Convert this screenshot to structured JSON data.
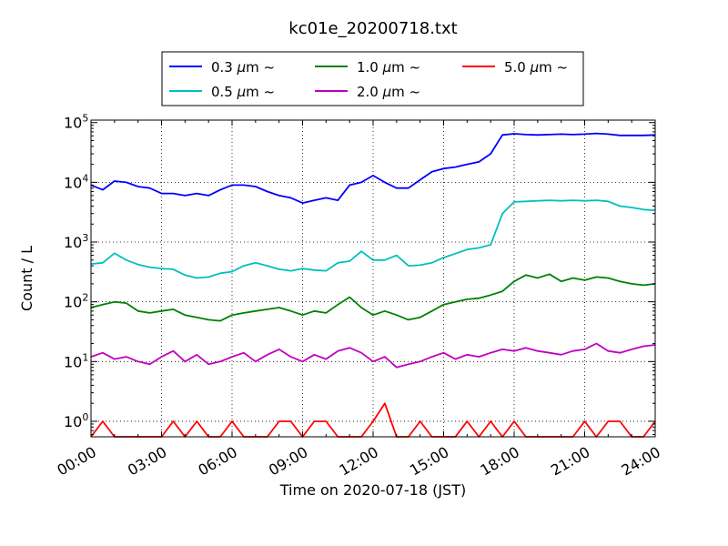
{
  "chart_data": {
    "type": "line",
    "title": "kc01e_20200718.txt",
    "xlabel": "Time on 2020-07-18 (JST)",
    "ylabel": "Count / L",
    "yscale": "log",
    "ylim": [
      0.55,
      110000
    ],
    "xlim": [
      "00:00",
      "24:00"
    ],
    "x_tick_labels": [
      "00:00",
      "03:00",
      "06:00",
      "09:00",
      "12:00",
      "15:00",
      "18:00",
      "21:00",
      "24:00"
    ],
    "y_tick_labels": [
      {
        "base": "10",
        "exp": "0"
      },
      {
        "base": "10",
        "exp": "1"
      },
      {
        "base": "10",
        "exp": "2"
      },
      {
        "base": "10",
        "exp": "3"
      },
      {
        "base": "10",
        "exp": "4"
      },
      {
        "base": "10",
        "exp": "5"
      }
    ],
    "grid": true,
    "legend_position": "top",
    "x_hours": [
      0,
      0.5,
      1,
      1.5,
      2,
      2.5,
      3,
      3.5,
      4,
      4.5,
      5,
      5.5,
      6,
      6.5,
      7,
      7.5,
      8,
      8.5,
      9,
      9.5,
      10,
      10.5,
      11,
      11.5,
      12,
      12.5,
      13,
      13.5,
      14,
      14.5,
      15,
      15.5,
      16,
      16.5,
      17,
      17.5,
      18,
      18.5,
      19,
      19.5,
      20,
      20.5,
      21,
      21.5,
      22,
      22.5,
      23,
      23.5,
      24
    ],
    "series": [
      {
        "name": "0.3",
        "unit": "μm",
        "suffix": "~",
        "color": "#0000ff",
        "values": [
          9000,
          7500,
          10500,
          10000,
          8500,
          8000,
          6500,
          6500,
          6000,
          6500,
          6000,
          7500,
          9000,
          9000,
          8500,
          7000,
          6000,
          5500,
          4500,
          5000,
          5500,
          5000,
          9000,
          10000,
          13000,
          10000,
          8000,
          8000,
          11000,
          15000,
          17000,
          18000,
          20000,
          22000,
          30000,
          62000,
          65000,
          63000,
          62000,
          63000,
          64000,
          63000,
          64000,
          66000,
          64000,
          61000,
          61000,
          61000,
          62000
        ]
      },
      {
        "name": "0.5",
        "unit": "μm",
        "suffix": "~",
        "color": "#00bfbf",
        "values": [
          430,
          450,
          650,
          500,
          420,
          380,
          360,
          350,
          280,
          250,
          260,
          300,
          320,
          400,
          450,
          400,
          350,
          330,
          360,
          340,
          330,
          450,
          480,
          700,
          500,
          500,
          600,
          400,
          410,
          450,
          550,
          640,
          750,
          800,
          900,
          3000,
          4700,
          4800,
          4900,
          5000,
          4900,
          5000,
          4900,
          5000,
          4800,
          4000,
          3800,
          3500,
          3400
        ]
      },
      {
        "name": "1.0",
        "unit": "μm",
        "suffix": "~",
        "color": "#008000",
        "values": [
          80,
          90,
          100,
          95,
          70,
          65,
          70,
          75,
          60,
          55,
          50,
          48,
          60,
          65,
          70,
          75,
          80,
          70,
          60,
          70,
          65,
          90,
          120,
          80,
          60,
          70,
          60,
          50,
          55,
          70,
          90,
          100,
          110,
          115,
          130,
          150,
          220,
          280,
          250,
          290,
          220,
          250,
          230,
          260,
          250,
          220,
          200,
          190,
          200
        ]
      },
      {
        "name": "2.0",
        "unit": "μm",
        "suffix": "~",
        "color": "#bf00bf",
        "values": [
          12,
          14,
          11,
          12,
          10,
          9,
          12,
          15,
          10,
          13,
          9,
          10,
          12,
          14,
          10,
          13,
          16,
          12,
          10,
          13,
          11,
          15,
          17,
          14,
          10,
          12,
          8,
          9,
          10,
          12,
          14,
          11,
          13,
          12,
          14,
          16,
          15,
          17,
          15,
          14,
          13,
          15,
          16,
          20,
          15,
          14,
          16,
          18,
          19
        ]
      },
      {
        "name": "5.0",
        "unit": "μm",
        "suffix": "~",
        "color": "#ff0000",
        "values": [
          0.55,
          1,
          0.55,
          0.55,
          0.55,
          0.55,
          0.55,
          1,
          0.55,
          1,
          0.55,
          0.55,
          1,
          0.55,
          0.55,
          0.55,
          1,
          1,
          0.55,
          1,
          1,
          0.55,
          0.55,
          0.55,
          1,
          2,
          0.55,
          0.55,
          1,
          0.55,
          0.55,
          0.55,
          1,
          0.55,
          1,
          0.55,
          1,
          0.55,
          0.55,
          0.55,
          0.55,
          0.55,
          1,
          0.55,
          1,
          1,
          0.55,
          0.55,
          1
        ]
      }
    ]
  }
}
